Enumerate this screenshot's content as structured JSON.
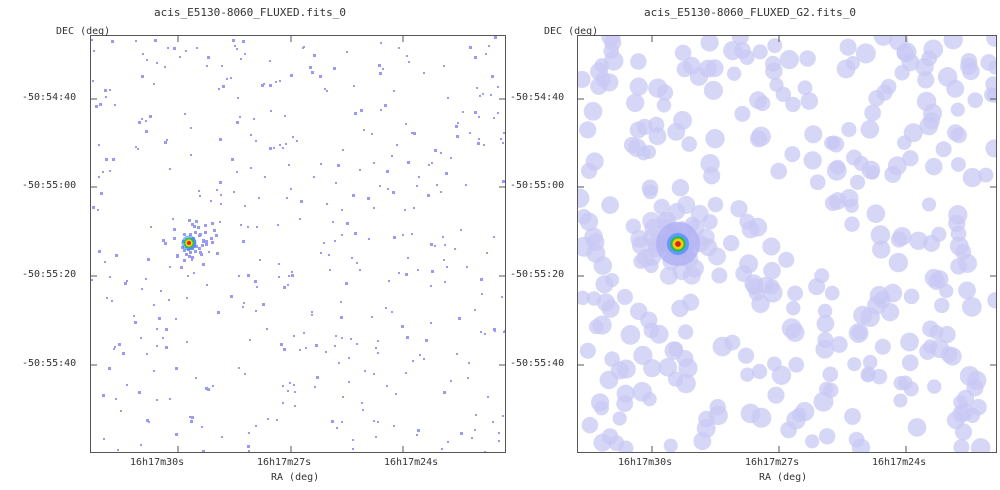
{
  "panels": [
    {
      "title": "acis_E5130-8060_FLUXED.fits_0",
      "y_axis_label": "DEC (deg)",
      "x_axis_label": "RA (deg)",
      "y_ticks": [
        "-50:54:40",
        "-50:55:00",
        "-50:55:20",
        "-50:55:40"
      ],
      "x_ticks": [
        "16h17m30s",
        "16h17m27s",
        "16h17m24s"
      ],
      "style": "pixels"
    },
    {
      "title": "acis_E5130-8060_FLUXED_G2.fits_0",
      "y_axis_label": "DEC (deg)",
      "x_axis_label": "RA (deg)",
      "y_ticks": [
        "-50:54:40",
        "-50:55:00",
        "-50:55:20",
        "-50:55:40"
      ],
      "x_ticks": [
        "16h17m30s",
        "16h17m27s",
        "16h17m24s"
      ],
      "style": "smoothed"
    }
  ],
  "colors": {
    "background_counts": "#9a9af0",
    "smoothed_counts": "#c8c8f4",
    "source_core": "#e02020",
    "source_ring1": "#f0d000",
    "source_ring2": "#20c040",
    "source_ring3": "#2080ff"
  }
}
